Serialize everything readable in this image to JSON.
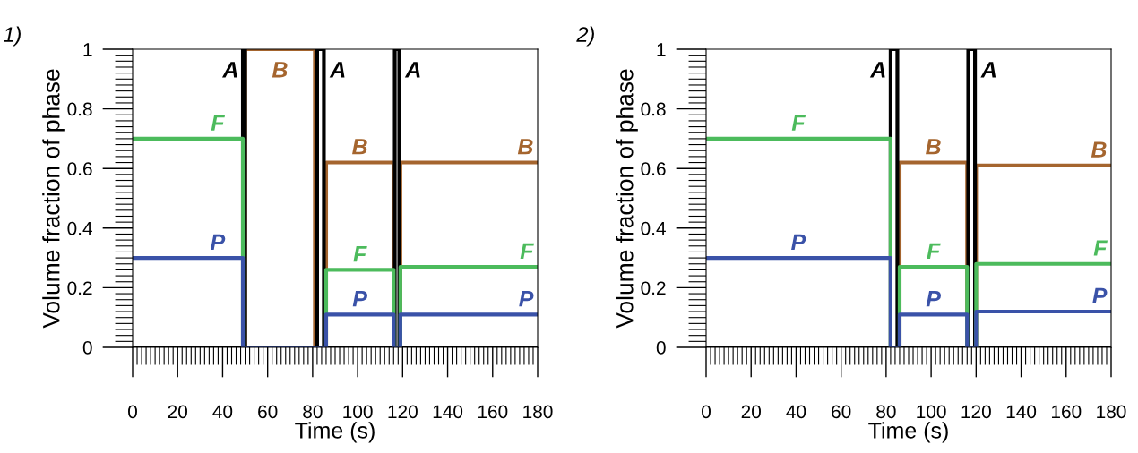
{
  "chart_data": [
    {
      "type": "step",
      "title": "1)",
      "xlabel": "Time (s)",
      "ylabel": "Volume fraction of phase",
      "xlim": [
        0,
        180
      ],
      "xticks": [
        0,
        20,
        40,
        60,
        80,
        100,
        120,
        140,
        160,
        180
      ],
      "ylim": [
        0,
        1
      ],
      "yticks": [
        0,
        0.2,
        0.4,
        0.6,
        0.8,
        1
      ],
      "grid": false,
      "legend": false,
      "series": [
        {
          "name": "B",
          "color": "#a5652e",
          "x": [
            0,
            50,
            81,
            86,
            116,
            119,
            180
          ],
          "values": [
            0,
            1,
            0,
            0.62,
            0,
            0.62,
            0.62
          ]
        },
        {
          "name": "A",
          "color": "#000000",
          "x": [
            0,
            49,
            50,
            82,
            85,
            116.5,
            118.5,
            180
          ],
          "values": [
            0,
            1,
            0,
            1,
            0,
            1,
            0,
            0
          ]
        },
        {
          "name": "F",
          "color": "#4cbb5c",
          "x": [
            0,
            49,
            86,
            116,
            119,
            180
          ],
          "values": [
            0.7,
            0,
            0.26,
            0,
            0.27,
            0.27
          ]
        },
        {
          "name": "P",
          "color": "#3a52a8",
          "x": [
            0,
            49,
            86,
            116,
            119,
            180
          ],
          "values": [
            0.3,
            0,
            0.11,
            0,
            0.11,
            0.11
          ]
        }
      ]
    },
    {
      "type": "step",
      "title": "2)",
      "xlabel": "Time (s)",
      "ylabel": "Volume fraction of phase",
      "xlim": [
        0,
        180
      ],
      "xticks": [
        0,
        20,
        40,
        60,
        80,
        100,
        120,
        140,
        160,
        180
      ],
      "ylim": [
        0,
        1
      ],
      "yticks": [
        0,
        0.2,
        0.4,
        0.6,
        0.8,
        1
      ],
      "grid": false,
      "legend": false,
      "series": [
        {
          "name": "B",
          "color": "#a5652e",
          "x": [
            0,
            86,
            116,
            120,
            180
          ],
          "values": [
            0,
            0.62,
            0,
            0.61,
            0.61
          ]
        },
        {
          "name": "A",
          "color": "#000000",
          "x": [
            0,
            82,
            85,
            116.5,
            119.5,
            180
          ],
          "values": [
            0,
            1,
            0,
            1,
            0,
            0
          ]
        },
        {
          "name": "F",
          "color": "#4cbb5c",
          "x": [
            0,
            82,
            86,
            116,
            120,
            180
          ],
          "values": [
            0.7,
            0,
            0.27,
            0,
            0.28,
            0.28
          ]
        },
        {
          "name": "P",
          "color": "#3a52a8",
          "x": [
            0,
            82,
            86,
            116,
            120,
            180
          ],
          "values": [
            0.3,
            0,
            0.11,
            0,
            0.12,
            0.12
          ]
        }
      ]
    }
  ]
}
